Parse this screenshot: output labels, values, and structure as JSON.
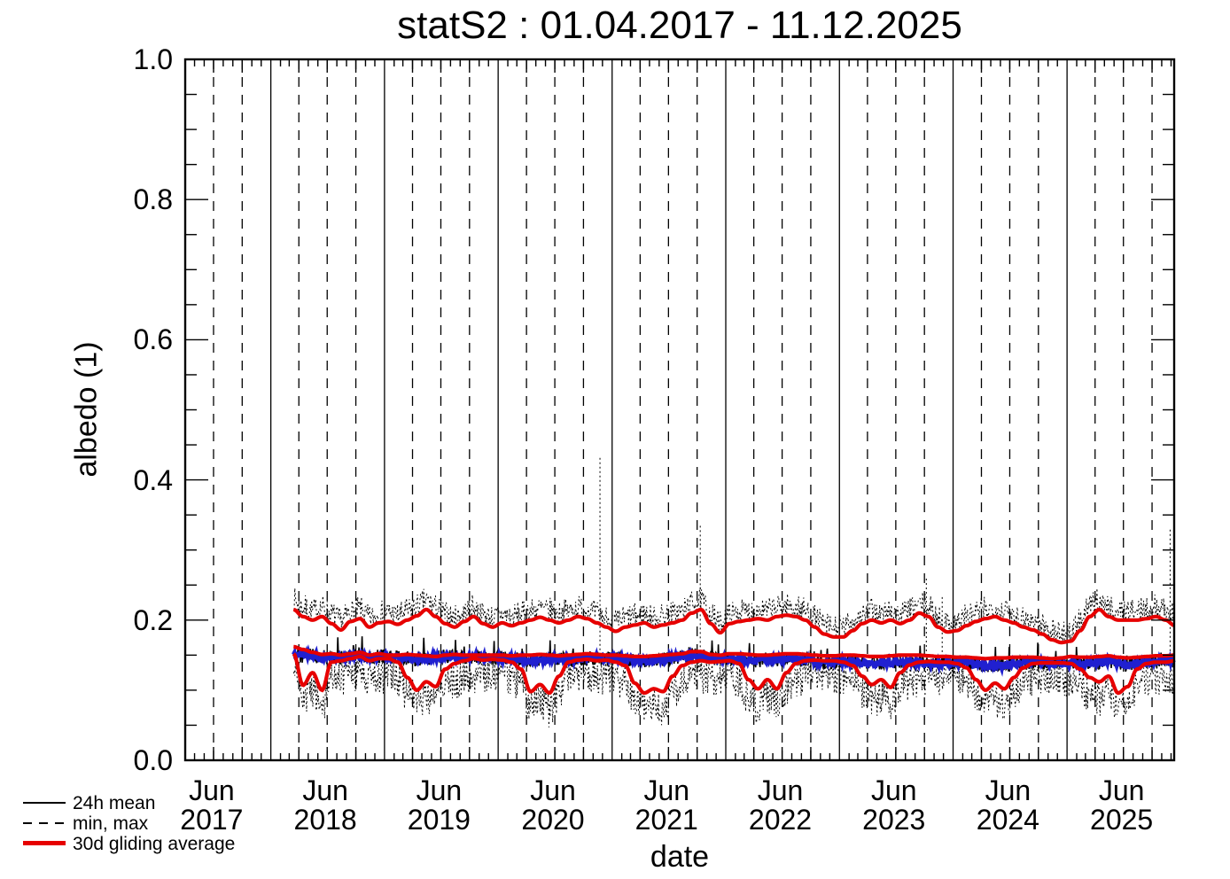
{
  "title": "statS2 : 01.04.2017 - 11.12.2025",
  "axes": {
    "ylabel": "albedo (1)",
    "xlabel": "date",
    "ytick_labels": [
      "0.0",
      "0.2",
      "0.4",
      "0.6",
      "0.8",
      "1.0"
    ],
    "ytick_values": [
      0.0,
      0.2,
      0.4,
      0.6,
      0.8,
      1.0
    ],
    "year_labels": [
      {
        "month": "Jun",
        "year": "2017"
      },
      {
        "month": "Jun",
        "year": "2018"
      },
      {
        "month": "Jun",
        "year": "2019"
      },
      {
        "month": "Jun",
        "year": "2020"
      },
      {
        "month": "Jun",
        "year": "2021"
      },
      {
        "month": "Jun",
        "year": "2022"
      },
      {
        "month": "Jun",
        "year": "2023"
      },
      {
        "month": "Jun",
        "year": "2024"
      },
      {
        "month": "Jun",
        "year": "2025"
      }
    ]
  },
  "legend": {
    "items": [
      {
        "label": "24h mean",
        "style": "solid-black"
      },
      {
        "label": "min, max",
        "style": "dashed-black"
      },
      {
        "label": "30d gliding average",
        "style": "solid-red"
      }
    ]
  },
  "colors": {
    "line_black": "#000000",
    "line_red": "#e60000",
    "line_blue": "#2020d0",
    "background": "#ffffff"
  },
  "chart_data": {
    "type": "line",
    "title": "statS2 : 01.04.2017 - 11.12.2025",
    "xlabel": "date",
    "ylabel": "albedo (1)",
    "ylim": [
      0.0,
      1.0
    ],
    "x_start": "2017-04-01",
    "x_end": "2025-12-11",
    "data_start": "2018-03-15",
    "anchor_interval": "monthly values (15th of month), Mar 2018 through Dec 2025",
    "gridlines": {
      "vertical_solid": "Jan 1 of each year",
      "vertical_dashed": "Apr 1, Jul 1, Oct 1 of each year",
      "horizontal": "none"
    },
    "legend_position": "below axis, bottom-left",
    "series": [
      {
        "id": "glide30_max",
        "name": "30d gliding average of daily max",
        "color": "#e60000",
        "line": "solid thick",
        "monthly_values": [
          0.215,
          0.205,
          0.2,
          0.205,
          0.195,
          0.186,
          0.198,
          0.202,
          0.19,
          0.196,
          0.198,
          0.194,
          0.2,
          0.206,
          0.215,
          0.205,
          0.195,
          0.19,
          0.198,
          0.205,
          0.195,
          0.19,
          0.196,
          0.192,
          0.196,
          0.2,
          0.204,
          0.2,
          0.196,
          0.2,
          0.205,
          0.202,
          0.196,
          0.19,
          0.184,
          0.19,
          0.193,
          0.196,
          0.19,
          0.193,
          0.196,
          0.2,
          0.21,
          0.215,
          0.195,
          0.182,
          0.195,
          0.198,
          0.2,
          0.202,
          0.2,
          0.205,
          0.207,
          0.205,
          0.2,
          0.19,
          0.18,
          0.176,
          0.176,
          0.185,
          0.195,
          0.2,
          0.196,
          0.2,
          0.195,
          0.2,
          0.21,
          0.205,
          0.19,
          0.183,
          0.185,
          0.192,
          0.198,
          0.202,
          0.205,
          0.2,
          0.196,
          0.19,
          0.186,
          0.18,
          0.172,
          0.168,
          0.17,
          0.185,
          0.205,
          0.215,
          0.205,
          0.2,
          0.2,
          0.2,
          0.202,
          0.205,
          0.2,
          0.192
        ]
      },
      {
        "id": "glide30_mean",
        "name": "30d gliding average of daily mean",
        "color": "#e60000",
        "line": "solid thick",
        "monthly_values": [
          0.162,
          0.158,
          0.154,
          0.151,
          0.152,
          0.15,
          0.152,
          0.154,
          0.15,
          0.152,
          0.15,
          0.15,
          0.151,
          0.15,
          0.149,
          0.148,
          0.15,
          0.151,
          0.15,
          0.15,
          0.15,
          0.15,
          0.15,
          0.149,
          0.15,
          0.15,
          0.151,
          0.15,
          0.149,
          0.15,
          0.151,
          0.152,
          0.151,
          0.15,
          0.15,
          0.149,
          0.148,
          0.148,
          0.149,
          0.15,
          0.151,
          0.152,
          0.155,
          0.155,
          0.151,
          0.15,
          0.152,
          0.152,
          0.151,
          0.15,
          0.15,
          0.151,
          0.152,
          0.152,
          0.151,
          0.15,
          0.149,
          0.149,
          0.15,
          0.15,
          0.149,
          0.148,
          0.148,
          0.149,
          0.15,
          0.15,
          0.15,
          0.149,
          0.148,
          0.148,
          0.147,
          0.147,
          0.146,
          0.145,
          0.146,
          0.146,
          0.147,
          0.147,
          0.147,
          0.146,
          0.145,
          0.146,
          0.148,
          0.147,
          0.147,
          0.148,
          0.149,
          0.147,
          0.146,
          0.147,
          0.148,
          0.149,
          0.149,
          0.15
        ]
      },
      {
        "id": "glide30_min",
        "name": "30d gliding average of daily min",
        "color": "#e60000",
        "line": "solid thick",
        "monthly_values": [
          0.152,
          0.107,
          0.125,
          0.1,
          0.14,
          0.142,
          0.145,
          0.148,
          0.142,
          0.145,
          0.145,
          0.14,
          0.118,
          0.1,
          0.112,
          0.105,
          0.13,
          0.138,
          0.142,
          0.145,
          0.143,
          0.144,
          0.143,
          0.14,
          0.13,
          0.098,
          0.108,
          0.096,
          0.12,
          0.14,
          0.143,
          0.144,
          0.142,
          0.143,
          0.14,
          0.135,
          0.11,
          0.096,
          0.102,
          0.098,
          0.12,
          0.135,
          0.14,
          0.142,
          0.14,
          0.141,
          0.142,
          0.138,
          0.115,
          0.102,
          0.115,
          0.102,
          0.125,
          0.138,
          0.142,
          0.143,
          0.142,
          0.142,
          0.14,
          0.135,
          0.12,
          0.108,
          0.115,
          0.104,
          0.125,
          0.136,
          0.14,
          0.141,
          0.14,
          0.14,
          0.138,
          0.132,
          0.115,
          0.1,
          0.11,
          0.102,
          0.118,
          0.132,
          0.138,
          0.139,
          0.139,
          0.139,
          0.138,
          0.13,
          0.118,
          0.112,
          0.12,
          0.096,
          0.105,
          0.13,
          0.138,
          0.14,
          0.14,
          0.142
        ]
      },
      {
        "id": "mean24",
        "name": "24h mean",
        "color": "#000000",
        "line": "solid thin, daily scatter around monthly level",
        "monthly_values": [
          0.152,
          0.149,
          0.15,
          0.147,
          0.148,
          0.146,
          0.149,
          0.15,
          0.147,
          0.148,
          0.148,
          0.147,
          0.146,
          0.145,
          0.146,
          0.147,
          0.148,
          0.147,
          0.146,
          0.147,
          0.146,
          0.146,
          0.146,
          0.145,
          0.144,
          0.143,
          0.144,
          0.145,
          0.146,
          0.145,
          0.144,
          0.145,
          0.146,
          0.145,
          0.145,
          0.144,
          0.143,
          0.142,
          0.143,
          0.144,
          0.146,
          0.148,
          0.15,
          0.149,
          0.146,
          0.145,
          0.145,
          0.144,
          0.143,
          0.142,
          0.143,
          0.144,
          0.145,
          0.144,
          0.143,
          0.142,
          0.141,
          0.141,
          0.141,
          0.14,
          0.139,
          0.138,
          0.139,
          0.14,
          0.141,
          0.14,
          0.139,
          0.138,
          0.138,
          0.139,
          0.14,
          0.139,
          0.138,
          0.136,
          0.135,
          0.136,
          0.138,
          0.139,
          0.14,
          0.139,
          0.138,
          0.138,
          0.138,
          0.137,
          0.138,
          0.14,
          0.142,
          0.139,
          0.136,
          0.137,
          0.14,
          0.142,
          0.141,
          0.14
        ]
      },
      {
        "id": "mean24_blue_overlay",
        "name": "unlabeled thick blue mean curve",
        "color": "#2020d0",
        "line": "solid thick",
        "follows": "mean24"
      },
      {
        "id": "minmax",
        "name": "min, max",
        "color": "#000000",
        "line": "dotted daily envelope",
        "envelope_tracks": "glide30_min / glide30_max with daily scatter",
        "scatter_amplitude_max": 0.032,
        "scatter_amplitude_min": 0.05
      }
    ],
    "max_spikes_days_from_x_start": [
      [
        1332,
        0.434
      ],
      [
        1654,
        0.335
      ],
      [
        2380,
        0.26
      ],
      [
        2431,
        0.235
      ],
      [
        3163,
        0.33
      ]
    ]
  }
}
